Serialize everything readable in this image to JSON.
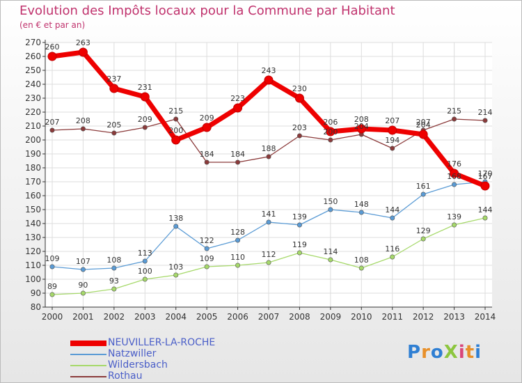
{
  "header": {
    "title": "Evolution des Impôts locaux pour la Commune par Habitant",
    "subtitle": "(en € et par an)"
  },
  "logo": {
    "text": "ProXiti",
    "letter_colors": [
      "#2f7fd3",
      "#e8902a",
      "#2f7fd3",
      "#8dc63f",
      "#d9467a",
      "#e8902a",
      "#2f7fd3"
    ]
  },
  "colors": {
    "title": "#c0326d",
    "legend_text": "#4a5ec8",
    "axis": "#333333",
    "grid": "#dddddd"
  },
  "chart_data": {
    "type": "line",
    "title": "Evolution des Impôts locaux pour la Commune par Habitant",
    "subtitle": "(en € et par an)",
    "xlabel": "",
    "ylabel": "",
    "x": [
      "2000",
      "2001",
      "2002",
      "2003",
      "2004",
      "2005",
      "2006",
      "2007",
      "2008",
      "2009",
      "2010",
      "2011",
      "2012",
      "2013",
      "2014"
    ],
    "ylim": [
      80,
      270
    ],
    "ytick_step": 10,
    "grid": true,
    "legend_position": "bottom-left",
    "series": [
      {
        "name": "NEUVILLER-LA-ROCHE",
        "color": "#ee0000",
        "values": [
          260,
          263,
          237,
          231,
          200,
          209,
          223,
          243,
          230,
          206,
          208,
          207,
          204,
          176,
          167
        ],
        "labels": [
          "260",
          "263",
          "237",
          "231",
          "200",
          "209",
          "223",
          "243",
          "230",
          "206",
          "208",
          "207",
          "204",
          "176",
          "167"
        ]
      },
      {
        "name": "Natzwiller",
        "color": "#5a9bd5",
        "values": [
          109,
          107,
          108,
          113,
          138,
          122,
          128,
          141,
          139,
          150,
          148,
          144,
          161,
          168,
          170
        ],
        "labels": [
          "109",
          "107",
          "108",
          "113",
          "138",
          "122",
          "128",
          "141",
          "139",
          "150",
          "148",
          "144",
          "161",
          "168",
          "170"
        ]
      },
      {
        "name": "Wildersbach",
        "color": "#a6d96a",
        "values": [
          89,
          90,
          93,
          100,
          103,
          109,
          110,
          112,
          119,
          114,
          108,
          116,
          129,
          139,
          144
        ],
        "labels": [
          "89",
          "90",
          "93",
          "100",
          "103",
          "109",
          "110",
          "112",
          "119",
          "114",
          "108",
          "116",
          "129",
          "139",
          "144"
        ]
      },
      {
        "name": "Rothau",
        "color": "#8b3a3a",
        "values": [
          207,
          208,
          205,
          209,
          215,
          184,
          184,
          188,
          203,
          200,
          204,
          194,
          207,
          215,
          214
        ],
        "labels": [
          "207",
          "208",
          "205",
          "209",
          "215",
          "184",
          "184",
          "188",
          "203",
          "200",
          "204",
          "194",
          "207",
          "215",
          "214"
        ]
      }
    ]
  }
}
